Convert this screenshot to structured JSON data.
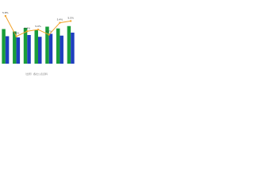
{
  "chart_data": {
    "type": "bar",
    "categories": [
      null,
      null,
      null,
      null,
      null,
      null,
      null
    ],
    "series": [
      {
        "name": null,
        "color": "#1a9e3a",
        "values": [
          58,
          54,
          60,
          56,
          62,
          59,
          63
        ]
      },
      {
        "name": null,
        "color": "#1f3fbf",
        "values": [
          46,
          44,
          48,
          45,
          50,
          47,
          52
        ]
      },
      {
        "name": null,
        "color": "#f2a22a",
        "type": "line",
        "axis": "y2",
        "values": [
          5.8,
          4.6,
          4.9,
          5.0,
          4.7,
          5.4,
          5.5
        ],
        "value_labels": [
          "5.8%",
          "4.6%",
          "4.9%",
          "5.0%",
          "4.7%",
          "5.4%",
          "5.5%"
        ]
      }
    ],
    "ylim": [
      0,
      100
    ],
    "y2lim": [
      3,
      6.5
    ],
    "note": "（出所）各社公表資料"
  }
}
